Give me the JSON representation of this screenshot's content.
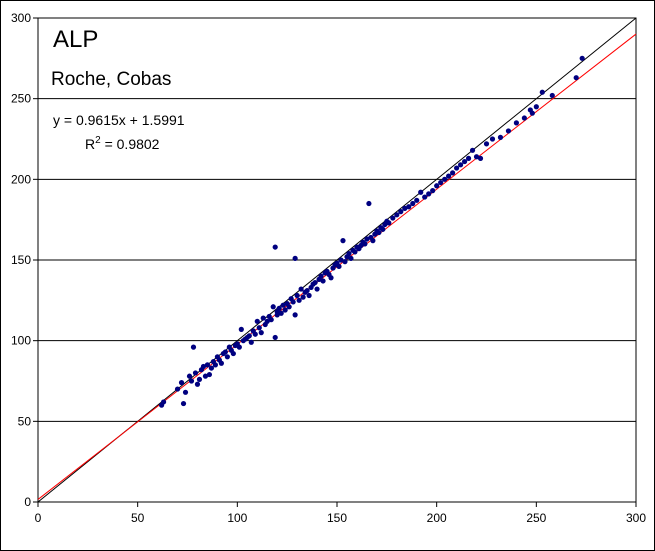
{
  "chart_data": {
    "type": "scatter",
    "title": "ALP",
    "subtitle": "Roche, Cobas",
    "annotations": {
      "equation": "y = 0.9615x + 1.5991",
      "r2_prefix": "R",
      "r2_sup": "2",
      "r2_value": " = 0.9802"
    },
    "xlim": [
      0,
      300
    ],
    "ylim": [
      0,
      300
    ],
    "x_ticks": [
      "0",
      "50",
      "100",
      "150",
      "200",
      "250",
      "300"
    ],
    "y_ticks": [
      "0",
      "50",
      "100",
      "150",
      "200",
      "250",
      "300"
    ],
    "grid": "horizontal major gridlines",
    "lines": [
      {
        "kind": "identity",
        "slope": 1,
        "intercept": 0,
        "color": "#000000"
      },
      {
        "kind": "regression",
        "slope": 0.9615,
        "intercept": 1.5991,
        "color": "#ff0000"
      }
    ],
    "marker_color": "#000080",
    "points": [
      [
        62,
        60
      ],
      [
        63,
        62
      ],
      [
        70,
        70
      ],
      [
        72,
        74
      ],
      [
        73,
        61
      ],
      [
        74,
        68
      ],
      [
        76,
        78
      ],
      [
        77,
        75
      ],
      [
        78,
        96
      ],
      [
        79,
        80
      ],
      [
        80,
        73
      ],
      [
        81,
        76
      ],
      [
        82,
        82
      ],
      [
        83,
        84
      ],
      [
        84,
        78
      ],
      [
        85,
        85
      ],
      [
        86,
        79
      ],
      [
        87,
        83
      ],
      [
        88,
        87
      ],
      [
        89,
        85
      ],
      [
        90,
        90
      ],
      [
        91,
        88
      ],
      [
        92,
        86
      ],
      [
        93,
        92
      ],
      [
        94,
        93
      ],
      [
        95,
        90
      ],
      [
        96,
        96
      ],
      [
        97,
        94
      ],
      [
        98,
        92
      ],
      [
        99,
        97
      ],
      [
        100,
        98
      ],
      [
        101,
        96
      ],
      [
        102,
        107
      ],
      [
        103,
        100
      ],
      [
        104,
        101
      ],
      [
        105,
        102
      ],
      [
        106,
        103
      ],
      [
        107,
        99
      ],
      [
        108,
        106
      ],
      [
        109,
        104
      ],
      [
        110,
        112
      ],
      [
        111,
        108
      ],
      [
        112,
        105
      ],
      [
        113,
        114
      ],
      [
        114,
        110
      ],
      [
        115,
        112
      ],
      [
        116,
        115
      ],
      [
        117,
        113
      ],
      [
        118,
        121
      ],
      [
        119,
        158
      ],
      [
        119,
        102
      ],
      [
        120,
        118
      ],
      [
        120,
        116
      ],
      [
        121,
        120
      ],
      [
        122,
        117
      ],
      [
        123,
        122
      ],
      [
        124,
        119
      ],
      [
        125,
        123
      ],
      [
        126,
        121
      ],
      [
        127,
        126
      ],
      [
        128,
        124
      ],
      [
        129,
        151
      ],
      [
        129,
        116
      ],
      [
        130,
        128
      ],
      [
        131,
        125
      ],
      [
        132,
        132
      ],
      [
        133,
        127
      ],
      [
        134,
        130
      ],
      [
        135,
        131
      ],
      [
        136,
        128
      ],
      [
        137,
        133
      ],
      [
        138,
        135
      ],
      [
        139,
        136
      ],
      [
        140,
        132
      ],
      [
        141,
        138
      ],
      [
        142,
        140
      ],
      [
        143,
        137
      ],
      [
        144,
        142
      ],
      [
        145,
        143
      ],
      [
        146,
        141
      ],
      [
        147,
        139
      ],
      [
        148,
        145
      ],
      [
        149,
        147
      ],
      [
        150,
        148
      ],
      [
        151,
        146
      ],
      [
        152,
        150
      ],
      [
        153,
        162
      ],
      [
        154,
        149
      ],
      [
        155,
        152
      ],
      [
        156,
        154
      ],
      [
        157,
        151
      ],
      [
        158,
        156
      ],
      [
        159,
        155
      ],
      [
        160,
        158
      ],
      [
        161,
        157
      ],
      [
        162,
        159
      ],
      [
        163,
        161
      ],
      [
        164,
        160
      ],
      [
        165,
        163
      ],
      [
        166,
        185
      ],
      [
        167,
        164
      ],
      [
        168,
        162
      ],
      [
        169,
        166
      ],
      [
        170,
        168
      ],
      [
        171,
        167
      ],
      [
        172,
        170
      ],
      [
        173,
        169
      ],
      [
        174,
        172
      ],
      [
        175,
        174
      ],
      [
        176,
        173
      ],
      [
        178,
        176
      ],
      [
        180,
        178
      ],
      [
        182,
        180
      ],
      [
        184,
        182
      ],
      [
        186,
        183
      ],
      [
        188,
        185
      ],
      [
        190,
        187
      ],
      [
        192,
        192
      ],
      [
        194,
        189
      ],
      [
        196,
        191
      ],
      [
        198,
        193
      ],
      [
        200,
        196
      ],
      [
        202,
        198
      ],
      [
        204,
        200
      ],
      [
        206,
        202
      ],
      [
        208,
        204
      ],
      [
        210,
        207
      ],
      [
        212,
        209
      ],
      [
        214,
        211
      ],
      [
        216,
        213
      ],
      [
        218,
        218
      ],
      [
        220,
        214
      ],
      [
        222,
        213
      ],
      [
        225,
        222
      ],
      [
        228,
        225
      ],
      [
        232,
        226
      ],
      [
        236,
        230
      ],
      [
        240,
        235
      ],
      [
        244,
        238
      ],
      [
        247,
        243
      ],
      [
        248,
        241
      ],
      [
        250,
        245
      ],
      [
        253,
        254
      ],
      [
        258,
        252
      ],
      [
        270,
        263
      ],
      [
        273,
        275
      ]
    ]
  }
}
